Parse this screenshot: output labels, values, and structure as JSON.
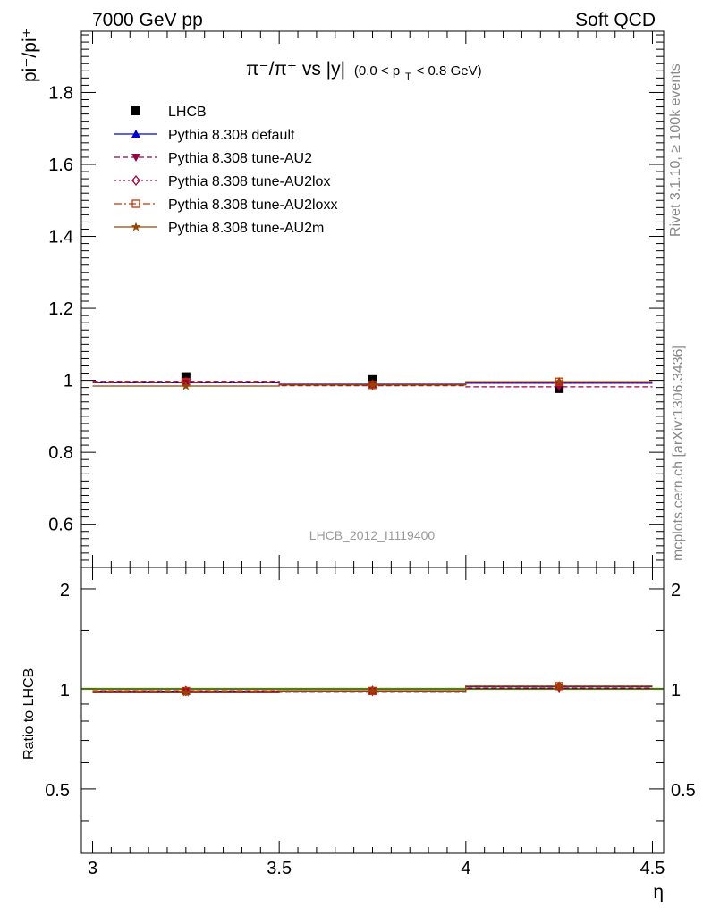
{
  "header": {
    "left": "7000 GeV pp",
    "right": "Soft QCD"
  },
  "side": {
    "rivet": "Rivet 3.1.10, ≥ 100k events",
    "mcplots": "mcplots.cern.ch [arXiv:1306.3436]"
  },
  "chart_data": [
    {
      "type": "scatter",
      "title": {
        "main": "π⁻/π⁺ vs |y|",
        "cut_open": "(0.0 < p",
        "cut_sub": "T",
        "cut_close": " < 0.8 GeV)"
      },
      "ylabel": "pi⁻/pi⁺",
      "analysis_label": "LHCB_2012_I1119400",
      "xlim": [
        2.97,
        4.53
      ],
      "ylim": [
        0.48,
        1.97
      ],
      "x_ticks": [
        3,
        3.5,
        4,
        4.5
      ],
      "y_ticks": [
        0.6,
        0.8,
        1,
        1.2,
        1.4,
        1.6,
        1.8
      ],
      "y_tick_labels": [
        "0.6",
        "0.8",
        "1",
        "1.2",
        "1.4",
        "1.6",
        "1.8"
      ],
      "grid": false,
      "legend_position": "top-left",
      "series": [
        {
          "name": "LHCB",
          "x": [
            3.25,
            3.75,
            4.25
          ],
          "y": [
            1.01,
            1.002,
            0.977
          ],
          "color": "#000000",
          "marker": "square",
          "line": "none"
        },
        {
          "name": "Pythia 8.308 default",
          "x": [
            3.25,
            3.75,
            4.25
          ],
          "y": [
            0.993,
            0.989,
            0.992
          ],
          "color": "#0000cc",
          "marker": "triangle-up",
          "line": "solid"
        },
        {
          "name": "Pythia 8.308 tune-AU2",
          "x": [
            3.25,
            3.75,
            4.25
          ],
          "y": [
            0.997,
            0.985,
            0.982
          ],
          "color": "#990044",
          "marker": "triangle-down",
          "line": "dash"
        },
        {
          "name": "Pythia 8.308 tune-AU2lox",
          "x": [
            3.25,
            3.75,
            4.25
          ],
          "y": [
            0.995,
            0.988,
            0.992
          ],
          "color": "#aa0033",
          "marker": "diamond-open",
          "line": "dot"
        },
        {
          "name": "Pythia 8.308 tune-AU2loxx",
          "x": [
            3.25,
            3.75,
            4.25
          ],
          "y": [
            0.994,
            0.987,
            0.996
          ],
          "color": "#cc3300",
          "marker": "square-open",
          "line": "dashdot"
        },
        {
          "name": "Pythia 8.308 tune-AU2m",
          "x": [
            3.25,
            3.75,
            4.25
          ],
          "y": [
            0.984,
            0.987,
            0.996
          ],
          "color": "#994400",
          "marker": "star",
          "line": "solid"
        }
      ]
    },
    {
      "type": "scatter",
      "xlabel": "η",
      "ylabel": "Ratio to LHCB",
      "xlim": [
        2.97,
        4.53
      ],
      "ylim": [
        0.32,
        2.32
      ],
      "log_scale_y": true,
      "x_ticks": [
        3,
        3.5,
        4,
        4.5
      ],
      "x_tick_labels": [
        "3",
        "3.5",
        "4",
        "4.5"
      ],
      "y_ticks": [
        0.5,
        1,
        2
      ],
      "y_tick_labels": [
        "0.5",
        "1",
        "2"
      ],
      "reference_band_color": "#aaee44",
      "series": [
        {
          "name": "Pythia 8.308 default",
          "x": [
            3.25,
            3.75,
            4.25
          ],
          "y": [
            0.983,
            0.987,
            1.015
          ],
          "color": "#0000cc",
          "marker": "triangle-up",
          "line": "solid"
        },
        {
          "name": "Pythia 8.308 tune-AU2",
          "x": [
            3.25,
            3.75,
            4.25
          ],
          "y": [
            0.987,
            0.983,
            1.005
          ],
          "color": "#990044",
          "marker": "triangle-down",
          "line": "dash"
        },
        {
          "name": "Pythia 8.308 tune-AU2lox",
          "x": [
            3.25,
            3.75,
            4.25
          ],
          "y": [
            0.985,
            0.986,
            1.015
          ],
          "color": "#aa0033",
          "marker": "diamond-open",
          "line": "dot"
        },
        {
          "name": "Pythia 8.308 tune-AU2loxx",
          "x": [
            3.25,
            3.75,
            4.25
          ],
          "y": [
            0.984,
            0.985,
            1.019
          ],
          "color": "#cc3300",
          "marker": "square-open",
          "line": "dashdot"
        },
        {
          "name": "Pythia 8.308 tune-AU2m",
          "x": [
            3.25,
            3.75,
            4.25
          ],
          "y": [
            0.974,
            0.985,
            1.019
          ],
          "color": "#994400",
          "marker": "star",
          "line": "solid"
        }
      ]
    }
  ]
}
